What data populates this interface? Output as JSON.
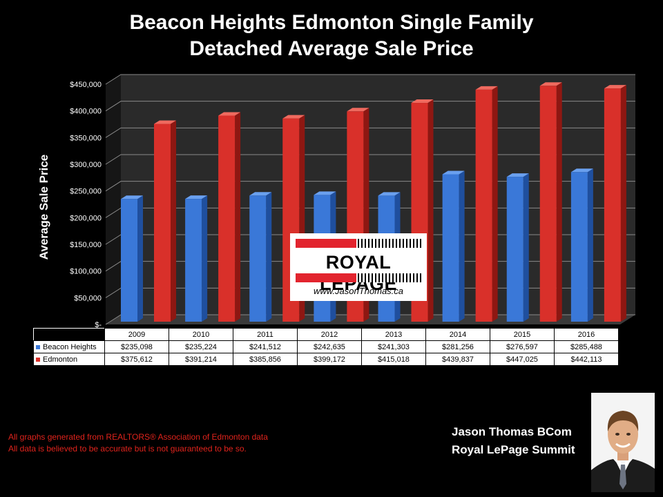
{
  "title_line1": "Beacon Heights Edmonton Single Family",
  "title_line2": "Detached Average Sale Price",
  "logo": {
    "brand": "ROYAL LEPAGE",
    "url": "www.JasonThomas.ca"
  },
  "disclaimer": {
    "line1": "All graphs generated from REALTORS® Association of Edmonton data",
    "line2": "All data is believed to be accurate but is not guaranteed to be so."
  },
  "agent": {
    "name": "Jason Thomas BCom",
    "company": "Royal LePage Summit"
  },
  "photo_icon": "agent-portrait",
  "colors": {
    "series1": "#3a78d8",
    "series2": "#d9302a",
    "background": "#000000",
    "wall": "#2a2a2a"
  },
  "chart_data": {
    "type": "bar",
    "title": "Beacon Heights Edmonton Single Family Detached Average Sale Price",
    "ylabel": "Average Sale Price",
    "xlabel": "",
    "ylim": [
      0,
      450000
    ],
    "y_ticks": [
      0,
      50000,
      100000,
      150000,
      200000,
      250000,
      300000,
      350000,
      400000,
      450000
    ],
    "y_tick_labels": [
      "$-",
      "$50,000",
      "$100,000",
      "$150,000",
      "$200,000",
      "$250,000",
      "$300,000",
      "$350,000",
      "$400,000",
      "$450,000"
    ],
    "grid": true,
    "categories": [
      "2009",
      "2010",
      "2011",
      "2012",
      "2013",
      "2014",
      "2015",
      "2016"
    ],
    "series": [
      {
        "name": "Beacon Heights",
        "values": [
          235098,
          235224,
          241512,
          242635,
          241303,
          281256,
          276597,
          285488
        ],
        "labels": [
          "$235,098",
          "$235,224",
          "$241,512",
          "$242,635",
          "$241,303",
          "$281,256",
          "$276,597",
          "$285,488"
        ],
        "color": "#3a78d8"
      },
      {
        "name": "Edmonton",
        "values": [
          375612,
          391214,
          385856,
          399172,
          415018,
          439837,
          447025,
          442113
        ],
        "labels": [
          "$375,612",
          "$391,214",
          "$385,856",
          "$399,172",
          "$415,018",
          "$439,837",
          "$447,025",
          "$442,113"
        ],
        "color": "#d9302a"
      }
    ]
  }
}
